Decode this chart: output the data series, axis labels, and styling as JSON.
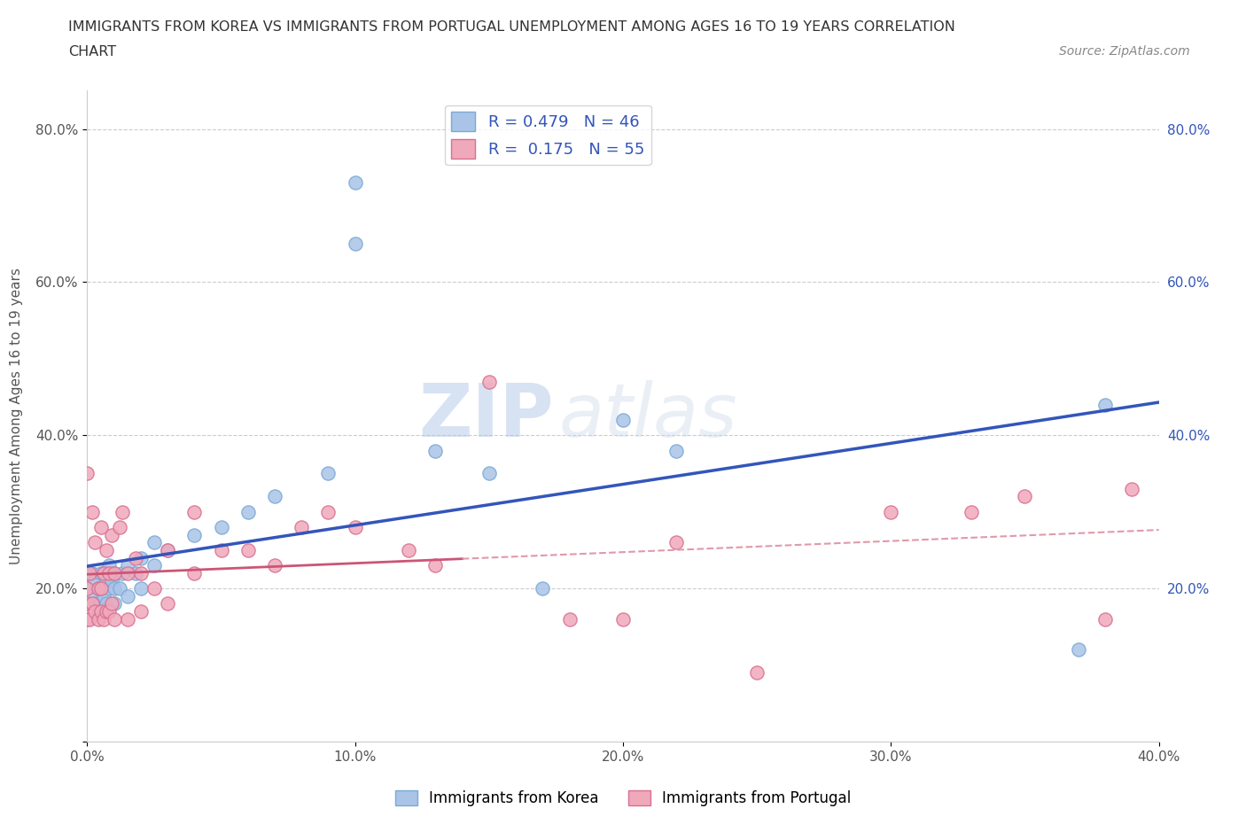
{
  "title_line1": "IMMIGRANTS FROM KOREA VS IMMIGRANTS FROM PORTUGAL UNEMPLOYMENT AMONG AGES 16 TO 19 YEARS CORRELATION",
  "title_line2": "CHART",
  "source_text": "Source: ZipAtlas.com",
  "ylabel": "Unemployment Among Ages 16 to 19 years",
  "xlim": [
    0.0,
    0.4
  ],
  "ylim": [
    0.0,
    0.85
  ],
  "x_ticks": [
    0.0,
    0.1,
    0.2,
    0.3,
    0.4
  ],
  "x_tick_labels": [
    "0.0%",
    "10.0%",
    "20.0%",
    "30.0%",
    "40.0%"
  ],
  "y_ticks": [
    0.0,
    0.2,
    0.4,
    0.6,
    0.8
  ],
  "y_tick_labels": [
    "",
    "20.0%",
    "40.0%",
    "60.0%",
    "80.0%"
  ],
  "korea_color": "#aac4e8",
  "korea_edge_color": "#7aaad4",
  "portugal_color": "#f0a8bb",
  "portugal_edge_color": "#d87090",
  "korea_line_color": "#3355bb",
  "portugal_line_color": "#cc5577",
  "portugal_line_dash_color": "#e09aaa",
  "watermark_color": "#d0dce8",
  "legend_korea_label": "R = 0.479   N = 46",
  "legend_portugal_label": "R =  0.175   N = 55",
  "bottom_legend_korea": "Immigrants from Korea",
  "bottom_legend_portugal": "Immigrants from Portugal",
  "korea_scatter_x": [
    0.0,
    0.0,
    0.0,
    0.002,
    0.002,
    0.003,
    0.003,
    0.004,
    0.004,
    0.005,
    0.005,
    0.005,
    0.006,
    0.006,
    0.007,
    0.007,
    0.008,
    0.008,
    0.009,
    0.01,
    0.01,
    0.01,
    0.012,
    0.013,
    0.015,
    0.015,
    0.018,
    0.02,
    0.02,
    0.025,
    0.025,
    0.03,
    0.04,
    0.05,
    0.06,
    0.07,
    0.09,
    0.1,
    0.1,
    0.13,
    0.15,
    0.17,
    0.2,
    0.22,
    0.37,
    0.38
  ],
  "korea_scatter_y": [
    0.18,
    0.2,
    0.22,
    0.19,
    0.22,
    0.18,
    0.21,
    0.17,
    0.2,
    0.18,
    0.2,
    0.22,
    0.19,
    0.22,
    0.18,
    0.21,
    0.2,
    0.23,
    0.21,
    0.18,
    0.2,
    0.22,
    0.2,
    0.22,
    0.19,
    0.23,
    0.22,
    0.2,
    0.24,
    0.23,
    0.26,
    0.25,
    0.27,
    0.28,
    0.3,
    0.32,
    0.35,
    0.65,
    0.73,
    0.38,
    0.35,
    0.2,
    0.42,
    0.38,
    0.12,
    0.44
  ],
  "portugal_scatter_x": [
    0.0,
    0.0,
    0.0,
    0.0,
    0.001,
    0.001,
    0.002,
    0.002,
    0.003,
    0.003,
    0.004,
    0.004,
    0.005,
    0.005,
    0.005,
    0.006,
    0.006,
    0.007,
    0.007,
    0.008,
    0.008,
    0.009,
    0.009,
    0.01,
    0.01,
    0.012,
    0.013,
    0.015,
    0.015,
    0.018,
    0.02,
    0.02,
    0.025,
    0.03,
    0.03,
    0.04,
    0.04,
    0.05,
    0.06,
    0.07,
    0.08,
    0.09,
    0.1,
    0.12,
    0.13,
    0.15,
    0.18,
    0.2,
    0.22,
    0.25,
    0.3,
    0.33,
    0.35,
    0.38,
    0.39
  ],
  "portugal_scatter_y": [
    0.16,
    0.18,
    0.2,
    0.35,
    0.16,
    0.22,
    0.18,
    0.3,
    0.17,
    0.26,
    0.16,
    0.2,
    0.17,
    0.2,
    0.28,
    0.16,
    0.22,
    0.17,
    0.25,
    0.17,
    0.22,
    0.18,
    0.27,
    0.16,
    0.22,
    0.28,
    0.3,
    0.16,
    0.22,
    0.24,
    0.17,
    0.22,
    0.2,
    0.18,
    0.25,
    0.22,
    0.3,
    0.25,
    0.25,
    0.23,
    0.28,
    0.3,
    0.28,
    0.25,
    0.23,
    0.47,
    0.16,
    0.16,
    0.26,
    0.09,
    0.3,
    0.3,
    0.32,
    0.16,
    0.33
  ],
  "background_color": "#ffffff",
  "grid_color": "#cccccc",
  "title_color": "#333333",
  "label_color": "#555555",
  "tick_color": "#555555",
  "right_tick_color": "#3355bb"
}
